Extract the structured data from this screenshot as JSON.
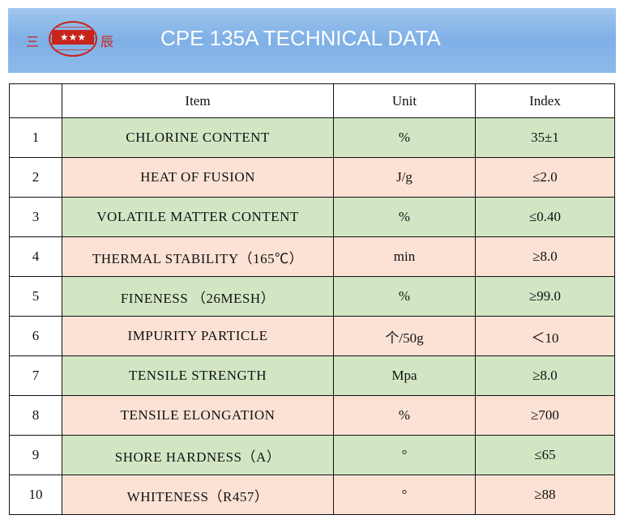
{
  "header": {
    "title": "CPE 135A TECHNICAL DATA",
    "logo_left": "三",
    "logo_right": "辰"
  },
  "table": {
    "columns": [
      "Item",
      "Unit",
      "Index"
    ],
    "rows": [
      [
        "1",
        "CHLORINE CONTENT",
        "%",
        "35±1"
      ],
      [
        "2",
        "HEAT OF FUSION",
        "J/g",
        "≤2.0"
      ],
      [
        "3",
        "VOLATILE MATTER CONTENT",
        "%",
        "≤0.40"
      ],
      [
        "4",
        "THERMAL STABILITY（165℃）",
        "min",
        "≥8.0"
      ],
      [
        "5",
        "FINENESS （26MESH）",
        "%",
        "≥99.0"
      ],
      [
        "6",
        "IMPURITY PARTICLE",
        "个/50g",
        "＜10"
      ],
      [
        "7",
        "TENSILE STRENGTH",
        "Mpa",
        "≥8.0"
      ],
      [
        "8",
        "TENSILE ELONGATION",
        "%",
        "≥700"
      ],
      [
        "9",
        "SHORE HARDNESS（A）",
        "°",
        "≤65"
      ],
      [
        "10",
        "WHITENESS（R457）",
        "°",
        "≥88"
      ]
    ]
  }
}
